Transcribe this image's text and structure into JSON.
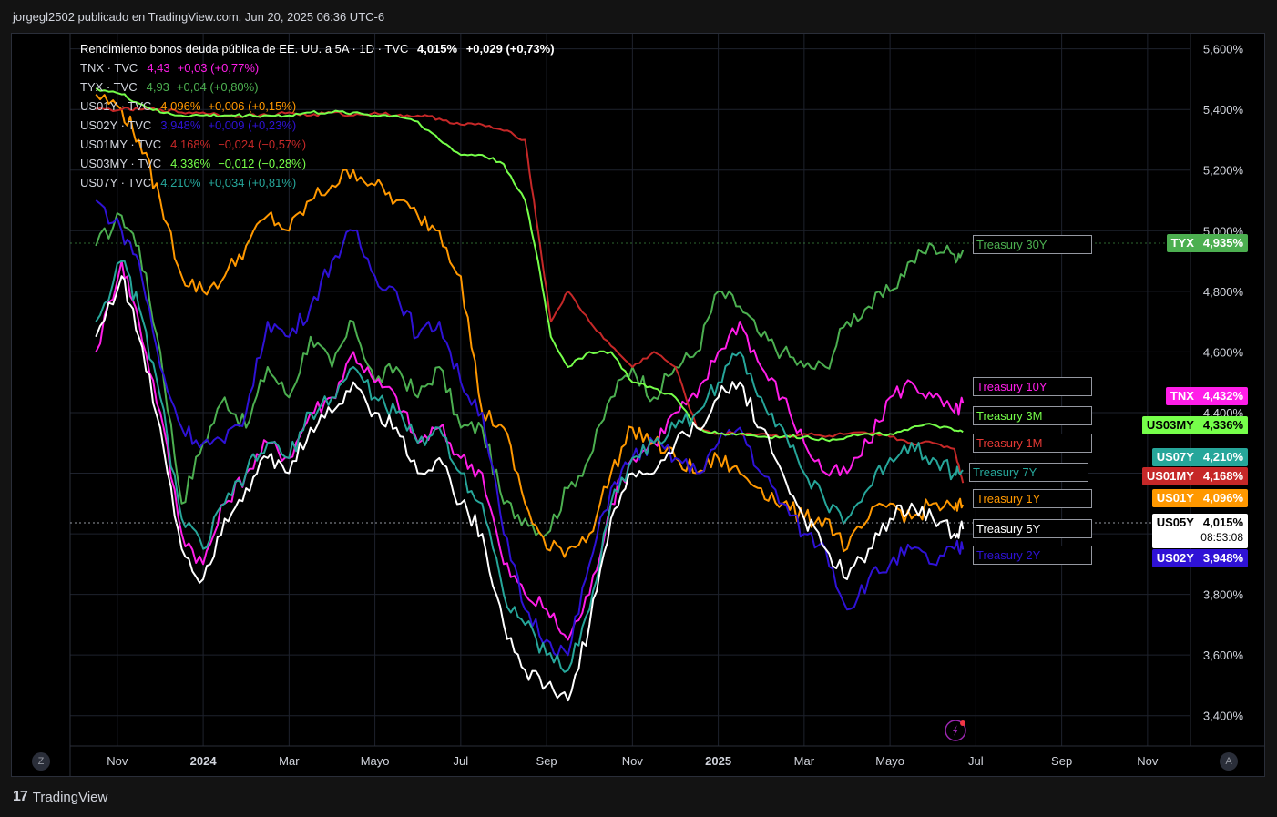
{
  "header": {
    "published": "jorgegl2502 publicado en TradingView.com, Jun 20, 2025 06:36 UTC-6"
  },
  "brand": {
    "name": "TradingView",
    "mark": "17"
  },
  "main_series": {
    "name": "Rendimiento bonos deuda pública de EE. UU. a 5A · 1D · TVC",
    "value": "4,015%",
    "change": "+0,029 (+0,73%)"
  },
  "legend": [
    {
      "symbol": "TNX · TVC",
      "value": "4,43",
      "change": "+0,03 (+0,77%)",
      "color": "#ff1ee8"
    },
    {
      "symbol": "TYX · TVC",
      "value": "4,93",
      "change": "+0,04 (+0,80%)",
      "color": "#4caf50"
    },
    {
      "symbol": "US01Y · TVC",
      "value": "4,096%",
      "change": "+0,006 (+0,15%)",
      "color": "#ff9800"
    },
    {
      "symbol": "US02Y · TVC",
      "value": "3,948%",
      "change": "+0,009 (+0,23%)",
      "color": "#2f12d6"
    },
    {
      "symbol": "US01MY · TVC",
      "value": "4,168%",
      "change": "−0,024 (−0,57%)",
      "color": "#c62828"
    },
    {
      "symbol": "US03MY · TVC",
      "value": "4,336%",
      "change": "−0,012 (−0,28%)",
      "color": "#76ff4a"
    },
    {
      "symbol": "US07Y · TVC",
      "value": "4,210%",
      "change": "+0,034 (+0,81%)",
      "color": "#26a69a"
    }
  ],
  "series_labels": [
    {
      "text": "Treasury 30Y",
      "color": "#4caf50"
    },
    {
      "text": "Treasury 10Y",
      "color": "#ff1ee8"
    },
    {
      "text": "Treasury 3M",
      "color": "#76ff4a"
    },
    {
      "text": "Treasury 1M",
      "color": "#e53935"
    },
    {
      "text": "Treasury 7Y",
      "color": "#26a69a"
    },
    {
      "text": "Treasury 1Y",
      "color": "#ff9800"
    },
    {
      "text": "Treasury 5Y",
      "color": "#ffffff"
    },
    {
      "text": "Treasury 2Y",
      "color": "#2f12d6"
    }
  ],
  "price_tags": [
    {
      "ticker": "TYX",
      "value": "4,935%",
      "bg": "#4caf50"
    },
    {
      "ticker": "TNX",
      "value": "4,432%",
      "bg": "#ff1ee8"
    },
    {
      "ticker": "US03MY",
      "value": "4,336%",
      "bg": "#76ff4a",
      "text": "#000000"
    },
    {
      "ticker": "US07Y",
      "value": "4,210%",
      "bg": "#26a69a"
    },
    {
      "ticker": "US01MY",
      "value": "4,168%",
      "bg": "#c62828"
    },
    {
      "ticker": "US01Y",
      "value": "4,096%",
      "bg": "#ff9800"
    },
    {
      "ticker": "US05Y",
      "value": "4,015%",
      "bg": "#ffffff",
      "text": "#000000",
      "countdown": "08:53:08"
    },
    {
      "ticker": "US02Y",
      "value": "3,948%",
      "bg": "#2f12d6"
    }
  ],
  "axis_controls": {
    "left": "Z",
    "right": "A"
  },
  "chart_data": {
    "type": "line",
    "y_unit": "%",
    "ylim": [
      3.3,
      5.65
    ],
    "yticks": [
      "5,600%",
      "5,400%",
      "5,200%",
      "5,000%",
      "4,800%",
      "4,600%",
      "4,400%",
      "4,200%",
      "4,000%",
      "3,800%",
      "3,600%",
      "3,400%"
    ],
    "ytick_values": [
      5.6,
      5.4,
      5.2,
      5.0,
      4.8,
      4.6,
      4.4,
      4.2,
      4.0,
      3.8,
      3.6,
      3.4
    ],
    "xticks": [
      {
        "label": "Nov",
        "t": 0.5,
        "bold": false
      },
      {
        "label": "2024",
        "t": 2.5,
        "bold": true
      },
      {
        "label": "Mar",
        "t": 4.5,
        "bold": false
      },
      {
        "label": "Mayo",
        "t": 6.5,
        "bold": false
      },
      {
        "label": "Jul",
        "t": 8.5,
        "bold": false
      },
      {
        "label": "Sep",
        "t": 10.5,
        "bold": false
      },
      {
        "label": "Nov",
        "t": 12.5,
        "bold": false
      },
      {
        "label": "2025",
        "t": 14.5,
        "bold": true
      },
      {
        "label": "Mar",
        "t": 16.5,
        "bold": false
      },
      {
        "label": "Mayo",
        "t": 18.5,
        "bold": false
      },
      {
        "label": "Jul",
        "t": 20.5,
        "bold": false
      },
      {
        "label": "Sep",
        "t": 22.5,
        "bold": false
      },
      {
        "label": "Nov",
        "t": 24.5,
        "bold": false
      }
    ],
    "xlim": [
      -0.6,
      25.5
    ],
    "x_unit": "months since 2023-10-01",
    "series": [
      {
        "name": "Treasury 30Y",
        "color": "#4caf50",
        "last": 4.935,
        "x": [
          0,
          0.6,
          1,
          1.5,
          2,
          2.5,
          3,
          3.5,
          4,
          4.5,
          5,
          5.5,
          6,
          6.5,
          7,
          7.5,
          8,
          8.5,
          9,
          9.5,
          10,
          10.5,
          11,
          11.5,
          12,
          12.5,
          13,
          13.5,
          14,
          14.5,
          15,
          15.5,
          16,
          16.5,
          17,
          17.5,
          18,
          18.5,
          19,
          19.5,
          20,
          20.2
        ],
        "y": [
          4.95,
          5.05,
          4.95,
          4.6,
          4.1,
          4.3,
          4.45,
          4.35,
          4.55,
          4.45,
          4.65,
          4.55,
          4.7,
          4.5,
          4.55,
          4.45,
          4.55,
          4.35,
          4.35,
          4.1,
          4.05,
          4.0,
          4.15,
          4.25,
          4.45,
          4.55,
          4.45,
          4.55,
          4.6,
          4.8,
          4.75,
          4.65,
          4.6,
          4.55,
          4.55,
          4.7,
          4.75,
          4.8,
          4.9,
          4.95,
          4.92,
          4.935
        ]
      },
      {
        "name": "Treasury 10Y",
        "color": "#ff1ee8",
        "last": 4.432,
        "x": [
          0,
          0.6,
          1,
          1.5,
          2,
          2.5,
          3,
          3.5,
          4,
          4.5,
          5,
          5.5,
          6,
          6.5,
          7,
          7.5,
          8,
          8.5,
          9,
          9.5,
          10,
          10.5,
          11,
          11.5,
          12,
          12.5,
          13,
          13.5,
          14,
          14.5,
          15,
          15.5,
          16,
          16.5,
          17,
          17.5,
          18,
          18.5,
          19,
          19.5,
          20,
          20.2
        ],
        "y": [
          4.6,
          4.9,
          4.7,
          4.4,
          4.0,
          3.9,
          4.1,
          4.2,
          4.3,
          4.25,
          4.4,
          4.45,
          4.6,
          4.5,
          4.45,
          4.3,
          4.35,
          4.25,
          4.2,
          3.9,
          3.8,
          3.75,
          3.65,
          3.8,
          4.1,
          4.25,
          4.3,
          4.4,
          4.45,
          4.6,
          4.7,
          4.55,
          4.45,
          4.3,
          4.2,
          4.2,
          4.3,
          4.45,
          4.5,
          4.45,
          4.4,
          4.432
        ]
      },
      {
        "name": "Treasury 1Y",
        "color": "#ff9800",
        "last": 4.096,
        "x": [
          0,
          0.6,
          1,
          1.5,
          2,
          2.5,
          3,
          3.5,
          4,
          4.5,
          5,
          5.5,
          6,
          6.5,
          7,
          7.5,
          8,
          8.5,
          9,
          9.5,
          10,
          10.5,
          11,
          11.5,
          12,
          12.5,
          13,
          13.5,
          14,
          14.5,
          15,
          15.5,
          16,
          16.5,
          17,
          17.5,
          18,
          18.5,
          19,
          19.5,
          20,
          20.2
        ],
        "y": [
          5.45,
          5.4,
          5.3,
          5.1,
          4.85,
          4.8,
          4.85,
          4.95,
          5.05,
          5.0,
          5.1,
          5.15,
          5.2,
          5.15,
          5.1,
          5.05,
          5.0,
          4.85,
          4.4,
          4.35,
          4.1,
          3.95,
          3.95,
          4.0,
          4.2,
          4.35,
          4.3,
          4.25,
          4.2,
          4.25,
          4.2,
          4.15,
          4.1,
          4.05,
          4.05,
          3.95,
          4.05,
          4.1,
          4.05,
          4.1,
          4.08,
          4.096
        ]
      },
      {
        "name": "Treasury 2Y",
        "color": "#2f12d6",
        "last": 3.948,
        "x": [
          0,
          0.6,
          1,
          1.5,
          2,
          2.5,
          3,
          3.5,
          4,
          4.5,
          5,
          5.5,
          6,
          6.5,
          7,
          7.5,
          8,
          8.5,
          9,
          9.5,
          10,
          10.5,
          11,
          11.5,
          12,
          12.5,
          13,
          13.5,
          14,
          14.5,
          15,
          15.5,
          16,
          16.5,
          17,
          17.5,
          18,
          18.5,
          19,
          19.5,
          20,
          20.2
        ],
        "y": [
          5.1,
          5.0,
          4.9,
          4.55,
          4.35,
          4.3,
          4.3,
          4.4,
          4.7,
          4.65,
          4.75,
          4.9,
          5.0,
          4.85,
          4.8,
          4.65,
          4.7,
          4.5,
          4.4,
          4.0,
          3.75,
          3.65,
          3.6,
          3.9,
          4.15,
          4.25,
          4.3,
          4.25,
          4.2,
          4.3,
          4.35,
          4.2,
          4.1,
          4.0,
          3.95,
          3.75,
          3.85,
          3.9,
          3.95,
          3.9,
          3.95,
          3.948
        ]
      },
      {
        "name": "Treasury 1M",
        "color": "#c62828",
        "last": 4.168,
        "x": [
          0,
          0.6,
          1,
          1.5,
          2,
          2.5,
          3,
          3.5,
          4,
          4.5,
          5,
          5.5,
          6,
          6.5,
          7,
          7.5,
          8,
          8.5,
          9,
          9.5,
          10,
          10.3,
          10.6,
          11,
          11.5,
          12,
          12.5,
          13,
          13.5,
          14,
          14.5,
          15,
          15.5,
          16,
          16.5,
          17,
          17.5,
          18,
          18.5,
          19,
          19.5,
          20,
          20.2
        ],
        "y": [
          5.4,
          5.4,
          5.4,
          5.4,
          5.39,
          5.39,
          5.38,
          5.38,
          5.38,
          5.39,
          5.38,
          5.39,
          5.38,
          5.39,
          5.38,
          5.38,
          5.37,
          5.35,
          5.35,
          5.33,
          5.3,
          5.0,
          4.7,
          4.8,
          4.7,
          4.62,
          4.55,
          4.6,
          4.55,
          4.35,
          4.33,
          4.33,
          4.33,
          4.32,
          4.33,
          4.32,
          4.33,
          4.33,
          4.32,
          4.3,
          4.3,
          4.28,
          4.168
        ]
      },
      {
        "name": "Treasury 3M",
        "color": "#76ff4a",
        "last": 4.336,
        "x": [
          0,
          0.6,
          1,
          1.5,
          2,
          2.5,
          3,
          3.5,
          4,
          4.5,
          5,
          5.5,
          6,
          6.5,
          7,
          7.5,
          8,
          8.5,
          9,
          9.5,
          10,
          10.3,
          10.6,
          11,
          11.5,
          12,
          12.5,
          13,
          13.5,
          14,
          14.5,
          15,
          15.5,
          16,
          16.5,
          17,
          17.5,
          18,
          18.5,
          19,
          19.5,
          20,
          20.2
        ],
        "y": [
          5.47,
          5.45,
          5.42,
          5.39,
          5.38,
          5.38,
          5.38,
          5.38,
          5.38,
          5.38,
          5.39,
          5.39,
          5.39,
          5.38,
          5.38,
          5.36,
          5.3,
          5.25,
          5.25,
          5.22,
          5.1,
          4.9,
          4.65,
          4.55,
          4.6,
          4.6,
          4.5,
          4.48,
          4.45,
          4.35,
          4.33,
          4.33,
          4.32,
          4.32,
          4.32,
          4.31,
          4.32,
          4.33,
          4.33,
          4.35,
          4.36,
          4.34,
          4.336
        ]
      },
      {
        "name": "Treasury 7Y",
        "color": "#26a69a",
        "last": 4.21,
        "x": [
          0,
          0.6,
          1,
          1.5,
          2,
          2.5,
          3,
          3.5,
          4,
          4.5,
          5,
          5.5,
          6,
          6.5,
          7,
          7.5,
          8,
          8.5,
          9,
          9.5,
          10,
          10.5,
          11,
          11.5,
          12,
          12.5,
          13,
          13.5,
          14,
          14.5,
          15,
          15.5,
          16,
          16.5,
          17,
          17.5,
          18,
          18.5,
          19,
          19.5,
          20,
          20.2
        ],
        "y": [
          4.7,
          4.9,
          4.75,
          4.45,
          4.05,
          3.95,
          4.1,
          4.2,
          4.3,
          4.25,
          4.4,
          4.45,
          4.55,
          4.45,
          4.4,
          4.3,
          4.35,
          4.2,
          4.1,
          3.8,
          3.7,
          3.6,
          3.55,
          3.75,
          4.1,
          4.25,
          4.3,
          4.35,
          4.4,
          4.5,
          4.6,
          4.45,
          4.35,
          4.2,
          4.1,
          4.05,
          4.15,
          4.25,
          4.3,
          4.25,
          4.2,
          4.21
        ]
      },
      {
        "name": "Treasury 5Y",
        "color": "#ffffff",
        "last": 4.015,
        "x": [
          0,
          0.6,
          1,
          1.5,
          2,
          2.5,
          3,
          3.5,
          4,
          4.5,
          5,
          5.5,
          6,
          6.5,
          7,
          7.5,
          8,
          8.5,
          9,
          9.5,
          10,
          10.5,
          11,
          11.5,
          12,
          12.5,
          13,
          13.5,
          14,
          14.5,
          15,
          15.5,
          16,
          16.5,
          17,
          17.5,
          18,
          18.5,
          19,
          19.5,
          20,
          20.2
        ],
        "y": [
          4.65,
          4.85,
          4.65,
          4.35,
          3.95,
          3.85,
          4.05,
          4.15,
          4.25,
          4.2,
          4.35,
          4.4,
          4.5,
          4.4,
          4.35,
          4.2,
          4.25,
          4.1,
          4.0,
          3.7,
          3.55,
          3.5,
          3.45,
          3.7,
          4.05,
          4.2,
          4.2,
          4.3,
          4.35,
          4.45,
          4.5,
          4.35,
          4.2,
          4.05,
          3.95,
          3.85,
          3.95,
          4.05,
          4.1,
          4.05,
          4.0,
          4.015
        ]
      }
    ]
  }
}
